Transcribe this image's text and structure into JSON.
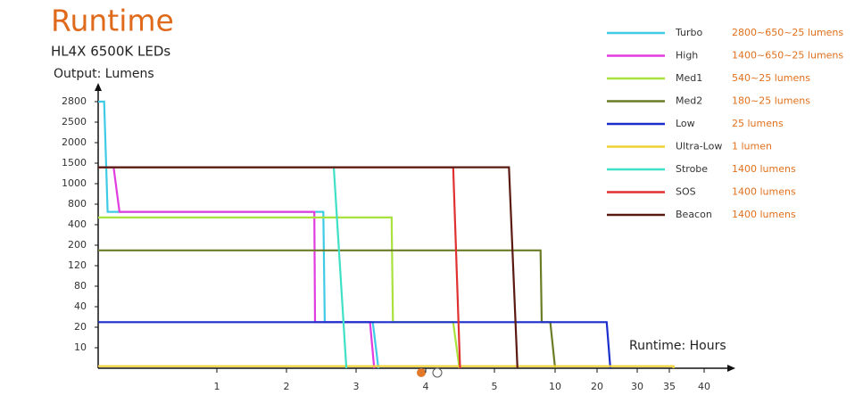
{
  "chart_data": {
    "type": "line",
    "title": "Runtime",
    "subtitle": "HL4X 6500K LEDs",
    "y_label": "Output: Lumens",
    "x_label": "Runtime: Hours",
    "xlim": [
      0,
      40
    ],
    "ylim": [
      0,
      2800
    ],
    "xticks": [
      1,
      2,
      3,
      4,
      5,
      10,
      20,
      30,
      35,
      40
    ],
    "yticks": [
      10,
      20,
      40,
      80,
      120,
      200,
      400,
      800,
      1000,
      1500,
      2000,
      2500,
      2800
    ],
    "series": [
      {
        "name": "Turbo",
        "label": "2800~650~25 lumens",
        "color": "#3fcbe6",
        "x": [
          0,
          0.05,
          0.08,
          2.53,
          2.55,
          3.24,
          3.32
        ],
        "values": [
          2800,
          2800,
          650,
          650,
          25,
          25,
          0
        ]
      },
      {
        "name": "High",
        "label": "1400~650~25 lumens",
        "color": "#e03ce0",
        "x": [
          0,
          0.13,
          0.18,
          2.4,
          2.41,
          3.2,
          3.26
        ],
        "values": [
          1400,
          1400,
          650,
          650,
          25,
          25,
          0
        ]
      },
      {
        "name": "Med1",
        "label": "540~25 lumens",
        "color": "#a9e23c",
        "x": [
          0,
          3.51,
          3.53,
          4.4,
          4.49
        ],
        "values": [
          540,
          540,
          25,
          25,
          0
        ]
      },
      {
        "name": "Med2",
        "label": "180~25 lumens",
        "color": "#6b7c26",
        "x": [
          0,
          8.8,
          8.9,
          9.6,
          10
        ],
        "values": [
          180,
          180,
          25,
          25,
          0
        ]
      },
      {
        "name": "Low",
        "label": "25 lumens",
        "color": "#1a2ecc",
        "x": [
          0,
          22.4,
          23.3
        ],
        "values": [
          25,
          25,
          0
        ]
      },
      {
        "name": "Ultra-Low",
        "label": "1 lumen",
        "color": "#efd035",
        "x": [
          0,
          35.6,
          35.6
        ],
        "values": [
          1,
          1,
          0
        ]
      },
      {
        "name": "Strobe",
        "label": "1400 lumens",
        "color": "#3ee0c6",
        "x": [
          0,
          2.68,
          2.86
        ],
        "values": [
          1400,
          1400,
          0
        ]
      },
      {
        "name": "SOS",
        "label": "1400 lumens",
        "color": "#e03030",
        "x": [
          0,
          4.4,
          4.5
        ],
        "values": [
          1400,
          1400,
          0
        ]
      },
      {
        "name": "Beacon",
        "label": "1400 lumens",
        "color": "#5a1a12",
        "x": [
          0,
          6.2,
          6.9
        ],
        "values": [
          1400,
          1400,
          0
        ]
      }
    ]
  }
}
